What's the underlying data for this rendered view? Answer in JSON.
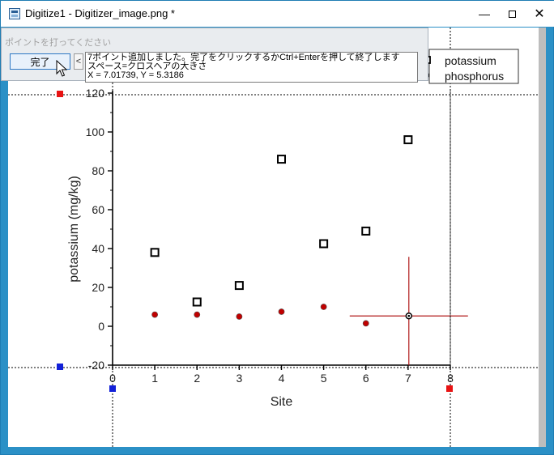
{
  "window": {
    "title": "Digitize1 - Digitizer_image.png *",
    "app_icon": "spreadsheet-icon",
    "controls": [
      "minimize-icon",
      "maximize-icon",
      "close-icon"
    ]
  },
  "overlay": {
    "hint": "ポイントを打ってください",
    "done_label": "完了",
    "collapse_label": "<",
    "message_lines": [
      "7ポイント追加しました。完了をクリックするかCtrl+Enterを押して終了します",
      "スペース=クロスヘアの大きさ",
      "X = 7.01739, Y = 5.3186"
    ]
  },
  "chart_data": {
    "type": "scatter",
    "xlabel": "Site",
    "ylabel": "potassium (mg/kg)",
    "xlim": [
      0,
      8
    ],
    "ylim": [
      -20,
      120
    ],
    "xticks": [
      0,
      1,
      2,
      3,
      4,
      5,
      6,
      7,
      8
    ],
    "yticks": [
      -20,
      0,
      20,
      40,
      60,
      80,
      100,
      120
    ],
    "tick_labels_x": [
      "0",
      "1",
      "2",
      "3",
      "4",
      "5",
      "6",
      "7",
      "8"
    ],
    "tick_labels_y": [
      "-20",
      "0",
      "20",
      "40",
      "60",
      "80",
      "100",
      "120"
    ],
    "legend_position": "top-right",
    "series": [
      {
        "name": "potassium",
        "marker": "open-square",
        "color": "#000000",
        "x": [
          1,
          2,
          3,
          4,
          5,
          6,
          7
        ],
        "y": [
          38,
          12.5,
          21,
          86,
          42.5,
          49,
          96
        ]
      },
      {
        "name": "phosphorus",
        "marker": "filled-circle",
        "color": "#c00000",
        "x": [
          1,
          2,
          3,
          4,
          5,
          6,
          7
        ],
        "y": [
          6,
          6,
          5,
          7.5,
          10,
          1.5,
          5
        ]
      }
    ],
    "crosshair": {
      "x": 7.01739,
      "y": 5.3186,
      "color": "#b01818"
    },
    "picked_marker_color": "#000000"
  },
  "colors": {
    "handle_red": "#e81313",
    "handle_blue": "#1220d8",
    "window_frame": "#2b90c6"
  }
}
